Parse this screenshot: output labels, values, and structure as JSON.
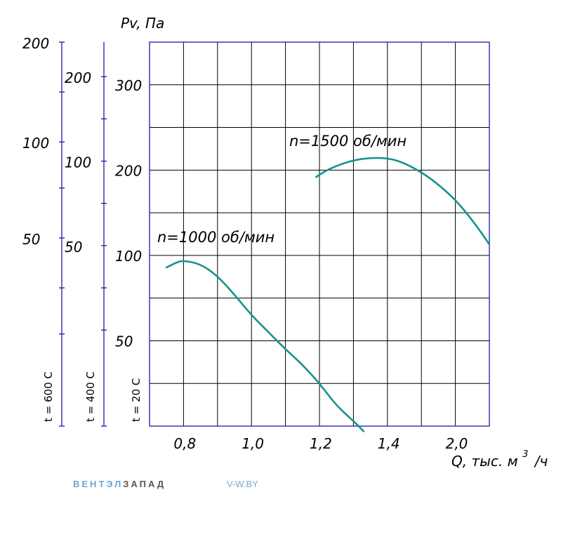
{
  "colors": {
    "axis": "#1a1aa6",
    "grid": "#000000",
    "curve": "#16928f"
  },
  "chart_data": {
    "type": "line",
    "ylabel": "Pv, Па",
    "xlabel_main": "Q, тыс. м",
    "xlabel_sup": "3",
    "xlabel_tail": "/ч",
    "x_ticks": [
      {
        "pos": 1,
        "label": "0,8"
      },
      {
        "pos": 3,
        "label": "1,0"
      },
      {
        "pos": 5,
        "label": "1,2"
      },
      {
        "pos": 7,
        "label": "1,4"
      },
      {
        "pos": 9,
        "label": "2,0"
      }
    ],
    "x_columns": 10,
    "y_rows": 9,
    "main_axis": {
      "temp_label": "t = 20 С",
      "ticks": [
        {
          "value": 300,
          "row": 1,
          "label": "300"
        },
        {
          "value": 200,
          "row": 3,
          "label": "200"
        },
        {
          "value": 100,
          "row": 5,
          "label": "100"
        },
        {
          "value": 50,
          "row": 7,
          "label": "50"
        }
      ]
    },
    "secondary_axes": [
      {
        "temp_label": "t = 600 С",
        "ticks": [
          {
            "value": 200,
            "pos": 0.0,
            "label": "200"
          },
          {
            "value": 100,
            "pos": 0.26,
            "label": "100"
          },
          {
            "value": 50,
            "pos": 0.51,
            "label": "50"
          }
        ],
        "minor": [
          0.0,
          0.13,
          0.26,
          0.38,
          0.51,
          0.64,
          0.76,
          1.0
        ]
      },
      {
        "temp_label": "t = 400 С",
        "ticks": [
          {
            "value": 200,
            "pos": 0.09,
            "label": "200"
          },
          {
            "value": 100,
            "pos": 0.31,
            "label": "100"
          },
          {
            "value": 50,
            "pos": 0.53,
            "label": "50"
          }
        ],
        "minor": [
          0.09,
          0.2,
          0.31,
          0.42,
          0.53,
          0.64,
          0.75,
          1.0
        ]
      }
    ],
    "series": [
      {
        "name": "n=1000 об/мин",
        "points": [
          [
            0.5,
            93
          ],
          [
            0.8,
            96
          ],
          [
            1.0,
            97
          ],
          [
            1.5,
            95
          ],
          [
            2.0,
            88
          ],
          [
            2.5,
            77
          ],
          [
            3.0,
            65
          ],
          [
            3.5,
            55
          ],
          [
            4.0,
            45
          ],
          [
            4.5,
            36
          ],
          [
            5.0,
            25
          ],
          [
            5.5,
            12
          ],
          [
            6.0,
            3
          ],
          [
            6.3,
            -3
          ]
        ]
      },
      {
        "name": "n=1500 об/мин",
        "points": [
          [
            4.9,
            192
          ],
          [
            5.3,
            202
          ],
          [
            6.0,
            212
          ],
          [
            6.7,
            215
          ],
          [
            7.3,
            212
          ],
          [
            8.0,
            198
          ],
          [
            8.6,
            180
          ],
          [
            9.1,
            161
          ],
          [
            9.6,
            136
          ],
          [
            10.0,
            113
          ]
        ]
      }
    ]
  },
  "brand": {
    "part1": "ВЕНТЭЛ",
    "part2": "ЗАПАД",
    "site": "V-W.BY"
  }
}
